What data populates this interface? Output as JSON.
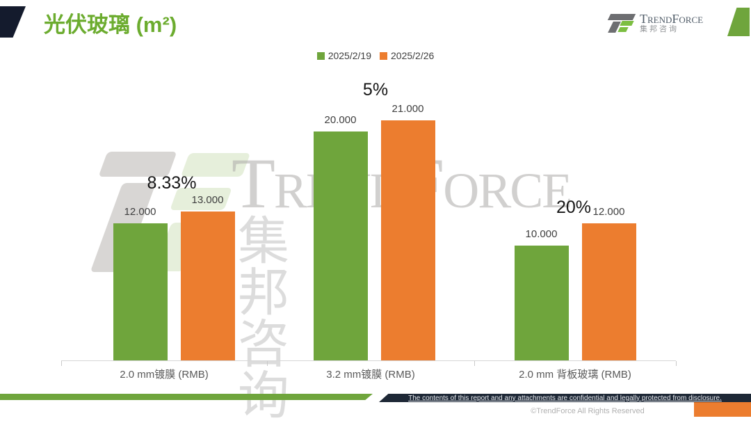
{
  "header": {
    "title": "光伏玻璃 (m²)",
    "logo_brand": "TrendForce",
    "logo_cn": "集邦咨询"
  },
  "watermark": {
    "brand": "TrendForce",
    "cn": "集邦咨询"
  },
  "chart_data": {
    "type": "bar",
    "title": "光伏玻璃 (m²)",
    "categories": [
      "2.0 mm镀膜 (RMB)",
      "3.2 mm镀膜 (RMB)",
      "2.0 mm 背板玻璃 (RMB)"
    ],
    "series": [
      {
        "name": "2025/2/19",
        "values": [
          12.0,
          20.0,
          10.0
        ],
        "value_labels": [
          "12.000",
          "20.000",
          "10.000"
        ]
      },
      {
        "name": "2025/2/26",
        "values": [
          13.0,
          21.0,
          12.0
        ],
        "value_labels": [
          "13.000",
          "21.000",
          "12.000"
        ]
      }
    ],
    "change_labels": [
      "8.33%",
      "5%",
      "20%"
    ],
    "ylabel": "",
    "xlabel": "",
    "ylim": [
      0,
      26
    ],
    "grid": false,
    "legend_position": "top"
  },
  "footer": {
    "confidential": "The contents of this report and any attachments are confidential and legally protected from disclosure.",
    "copyright": "©TrendForce All Rights Reserved"
  },
  "colors": {
    "green": "#6FA53C",
    "orange": "#EC7D2F",
    "title_green": "#6CAC2F",
    "dark_navy": "#141B2D",
    "footer_bar": "#1E2836",
    "axis_gray": "#D6D6D6"
  }
}
